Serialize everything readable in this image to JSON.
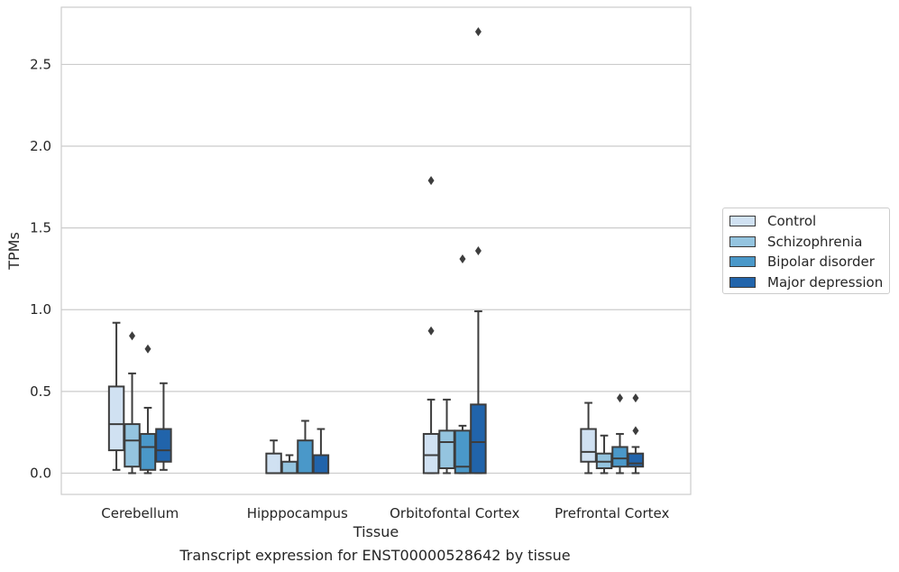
{
  "caption": "Transcript expression for ENST00000528642 by tissue",
  "chart_data": {
    "type": "box",
    "xlabel": "Tissue",
    "ylabel": "TPMs",
    "ylim": [
      -0.13,
      2.85
    ],
    "yticks": [
      "0.0",
      "0.5",
      "1.0",
      "1.5",
      "2.0",
      "2.5"
    ],
    "ytick_values": [
      0,
      0.5,
      1.0,
      1.5,
      2.0,
      2.5
    ],
    "grid": "horizontal",
    "legend_position": "right",
    "categories": [
      "Cerebellum",
      "Hipppocampus",
      "Orbitofontal Cortex",
      "Prefrontal Cortex"
    ],
    "series": [
      {
        "name": "Control",
        "color": "#d0e1f2",
        "boxes": [
          {
            "whislo": 0.02,
            "q1": 0.14,
            "med": 0.3,
            "q3": 0.53,
            "whishi": 0.92,
            "fliers": []
          },
          {
            "whislo": 0.0,
            "q1": 0.0,
            "med": 0.0,
            "q3": 0.12,
            "whishi": 0.2,
            "fliers": []
          },
          {
            "whislo": 0.0,
            "q1": 0.0,
            "med": 0.11,
            "q3": 0.24,
            "whishi": 0.45,
            "fliers": [
              0.87,
              1.79
            ]
          },
          {
            "whislo": 0.0,
            "q1": 0.07,
            "med": 0.13,
            "q3": 0.27,
            "whishi": 0.43,
            "fliers": []
          }
        ]
      },
      {
        "name": "Schizophrenia",
        "color": "#94c4df",
        "boxes": [
          {
            "whislo": 0.0,
            "q1": 0.04,
            "med": 0.2,
            "q3": 0.3,
            "whishi": 0.61,
            "fliers": [
              0.84
            ]
          },
          {
            "whislo": 0.0,
            "q1": 0.0,
            "med": 0.0,
            "q3": 0.07,
            "whishi": 0.11,
            "fliers": []
          },
          {
            "whislo": 0.0,
            "q1": 0.03,
            "med": 0.19,
            "q3": 0.26,
            "whishi": 0.45,
            "fliers": []
          },
          {
            "whislo": 0.0,
            "q1": 0.03,
            "med": 0.07,
            "q3": 0.12,
            "whishi": 0.23,
            "fliers": []
          }
        ]
      },
      {
        "name": "Bipolar disorder",
        "color": "#4a98c9",
        "boxes": [
          {
            "whislo": 0.0,
            "q1": 0.02,
            "med": 0.16,
            "q3": 0.24,
            "whishi": 0.4,
            "fliers": [
              0.76
            ]
          },
          {
            "whislo": 0.0,
            "q1": 0.0,
            "med": 0.0,
            "q3": 0.2,
            "whishi": 0.32,
            "fliers": []
          },
          {
            "whislo": 0.0,
            "q1": 0.0,
            "med": 0.04,
            "q3": 0.26,
            "whishi": 0.29,
            "fliers": [
              1.31
            ]
          },
          {
            "whislo": 0.0,
            "q1": 0.04,
            "med": 0.09,
            "q3": 0.16,
            "whishi": 0.24,
            "fliers": [
              0.46
            ]
          }
        ]
      },
      {
        "name": "Major depression",
        "color": "#2164ab",
        "boxes": [
          {
            "whislo": 0.02,
            "q1": 0.07,
            "med": 0.14,
            "q3": 0.27,
            "whishi": 0.55,
            "fliers": []
          },
          {
            "whislo": 0.0,
            "q1": 0.0,
            "med": 0.0,
            "q3": 0.11,
            "whishi": 0.27,
            "fliers": []
          },
          {
            "whislo": 0.0,
            "q1": 0.0,
            "med": 0.19,
            "q3": 0.42,
            "whishi": 0.99,
            "fliers": [
              1.36,
              2.7
            ]
          },
          {
            "whislo": 0.0,
            "q1": 0.04,
            "med": 0.06,
            "q3": 0.12,
            "whishi": 0.16,
            "fliers": [
              0.26,
              0.46
            ]
          }
        ]
      }
    ]
  }
}
